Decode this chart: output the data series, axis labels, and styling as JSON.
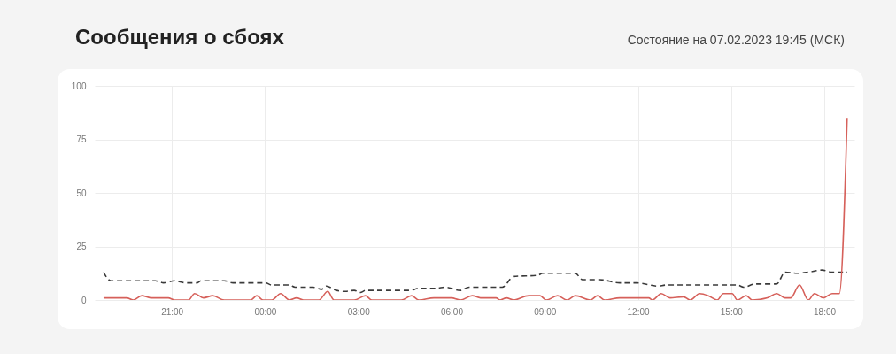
{
  "chart_data": {
    "type": "line",
    "title": "Сообщения о сбоях",
    "annotations": [
      "Состояние на 07.02.2023 19:45 (МСК)"
    ],
    "xlim": [
      "2023-02-06T18:31",
      "2023-02-07T18:58"
    ],
    "xticks": [
      {
        "value": "2023-02-06T21:00",
        "label": "21:00"
      },
      {
        "value": "2023-02-07T00:00",
        "label": "00:00"
      },
      {
        "value": "2023-02-07T03:00",
        "label": "03:00"
      },
      {
        "value": "2023-02-07T06:00",
        "label": "06:00"
      },
      {
        "value": "2023-02-07T09:00",
        "label": "09:00"
      },
      {
        "value": "2023-02-07T12:00",
        "label": "12:00"
      },
      {
        "value": "2023-02-07T15:00",
        "label": "15:00"
      },
      {
        "value": "2023-02-07T18:00",
        "label": "18:00"
      }
    ],
    "ylim": [
      0,
      100
    ],
    "yticks": [
      0,
      25,
      50,
      75,
      100
    ],
    "grid": true,
    "series": [
      {
        "color": "#3a3a3a",
        "line_style": "dashed",
        "x": [
          "2023-02-06T18:48",
          "2023-02-06T19:02",
          "2023-02-06T20:28",
          "2023-02-06T20:44",
          "2023-02-06T21:05",
          "2023-02-06T21:27",
          "2023-02-06T21:49",
          "2023-02-06T21:56",
          "2023-02-06T22:41",
          "2023-02-06T22:58",
          "2023-02-07T00:01",
          "2023-02-07T00:13",
          "2023-02-07T00:47",
          "2023-02-07T00:58",
          "2023-02-07T01:32",
          "2023-02-07T01:49",
          "2023-02-07T01:58",
          "2023-02-07T02:18",
          "2023-02-07T02:35",
          "2023-02-07T02:52",
          "2023-02-07T03:04",
          "2023-02-07T03:14",
          "2023-02-07T04:40",
          "2023-02-07T04:57",
          "2023-02-07T05:31",
          "2023-02-07T05:48",
          "2023-02-07T06:17",
          "2023-02-07T06:34",
          "2023-02-07T07:38",
          "2023-02-07T08:00",
          "2023-02-07T08:46",
          "2023-02-07T08:56",
          "2023-02-07T09:59",
          "2023-02-07T10:13",
          "2023-02-07T10:46",
          "2023-02-07T11:25",
          "2023-02-07T11:59",
          "2023-02-07T12:38",
          "2023-02-07T12:55",
          "2023-02-07T15:12",
          "2023-02-07T15:24",
          "2023-02-07T15:46",
          "2023-02-07T16:28",
          "2023-02-07T16:44",
          "2023-02-07T17:07",
          "2023-02-07T17:29",
          "2023-02-07T17:55",
          "2023-02-07T18:15",
          "2023-02-07T18:44"
        ],
        "values": [
          13,
          9,
          9,
          8,
          9,
          8,
          8,
          9,
          9,
          8,
          8,
          7,
          7,
          6,
          6,
          5,
          6.5,
          4.5,
          4,
          4.5,
          3.5,
          4.5,
          4.5,
          5.5,
          5.5,
          6,
          4.5,
          6,
          6,
          11,
          11.5,
          12.5,
          12.5,
          9.5,
          9.5,
          8,
          8,
          6.5,
          7,
          7,
          6,
          7.5,
          7.5,
          13,
          12.5,
          13,
          14,
          13,
          13
        ]
      },
      {
        "color": "#d6605a",
        "line_style": "solid",
        "x": [
          "2023-02-06T18:48",
          "2023-02-06T19:33",
          "2023-02-06T19:45",
          "2023-02-06T20:02",
          "2023-02-06T20:19",
          "2023-02-06T20:53",
          "2023-02-06T21:05",
          "2023-02-06T21:32",
          "2023-02-06T21:44",
          "2023-02-06T22:01",
          "2023-02-06T22:19",
          "2023-02-06T22:41",
          "2023-02-06T23:32",
          "2023-02-06T23:44",
          "2023-02-06T23:56",
          "2023-02-07T00:13",
          "2023-02-07T00:30",
          "2023-02-07T00:47",
          "2023-02-07T01:01",
          "2023-02-07T01:14",
          "2023-02-07T01:44",
          "2023-02-07T02:01",
          "2023-02-07T02:13",
          "2023-02-07T02:52",
          "2023-02-07T03:14",
          "2023-02-07T03:26",
          "2023-02-07T04:23",
          "2023-02-07T04:43",
          "2023-02-07T04:57",
          "2023-02-07T05:26",
          "2023-02-07T06:00",
          "2023-02-07T06:17",
          "2023-02-07T06:40",
          "2023-02-07T06:56",
          "2023-02-07T07:26",
          "2023-02-07T07:34",
          "2023-02-07T07:46",
          "2023-02-07T08:00",
          "2023-02-07T08:29",
          "2023-02-07T08:51",
          "2023-02-07T09:03",
          "2023-02-07T09:25",
          "2023-02-07T09:43",
          "2023-02-07T09:59",
          "2023-02-07T10:28",
          "2023-02-07T10:42",
          "2023-02-07T10:56",
          "2023-02-07T11:25",
          "2023-02-07T12:21",
          "2023-02-07T12:28",
          "2023-02-07T12:45",
          "2023-02-07T13:02",
          "2023-02-07T13:28",
          "2023-02-07T13:41",
          "2023-02-07T13:59",
          "2023-02-07T14:16",
          "2023-02-07T14:33",
          "2023-02-07T14:45",
          "2023-02-07T15:02",
          "2023-02-07T15:12",
          "2023-02-07T15:29",
          "2023-02-07T15:41",
          "2023-02-07T16:10",
          "2023-02-07T16:28",
          "2023-02-07T16:44",
          "2023-02-07T16:55",
          "2023-02-07T17:12",
          "2023-02-07T17:29",
          "2023-02-07T17:41",
          "2023-02-07T17:58",
          "2023-02-07T18:15",
          "2023-02-07T18:29",
          "2023-02-07T18:44"
        ],
        "values": [
          1,
          1,
          0,
          2,
          1,
          1,
          0,
          0,
          3,
          1,
          2,
          0,
          0,
          2,
          0,
          0,
          3,
          0,
          1,
          0,
          0,
          4,
          0,
          0,
          2,
          0,
          0,
          2,
          0,
          1,
          1,
          0,
          2,
          1,
          1,
          0,
          1,
          0,
          2,
          2,
          0,
          2,
          0,
          2,
          0,
          2,
          0,
          1,
          1,
          0,
          3,
          1,
          1.5,
          0,
          3,
          2,
          0,
          3,
          3,
          0,
          2,
          0,
          1,
          3,
          1,
          1,
          7,
          0,
          3,
          1,
          3,
          3,
          85
        ]
      }
    ]
  }
}
